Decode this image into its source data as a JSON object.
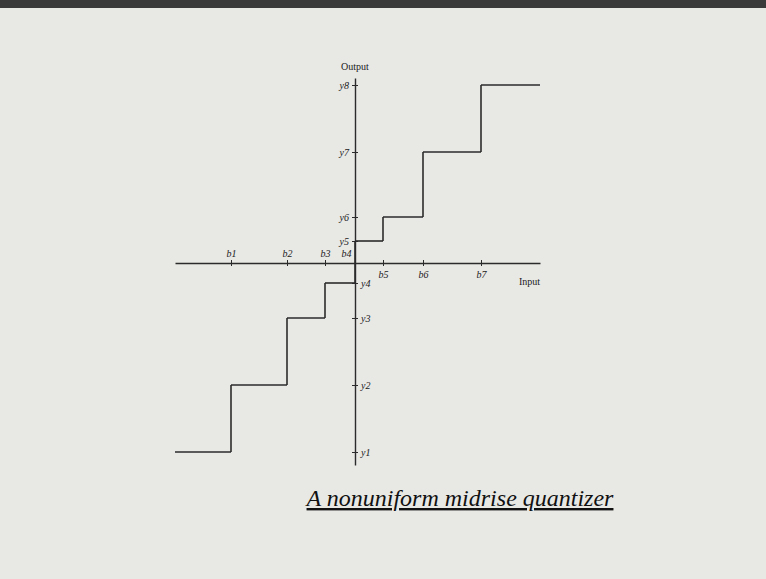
{
  "chart_data": {
    "type": "step",
    "title": "A nonuniform midrise quantizer",
    "x_label": "Input",
    "y_label": "Output",
    "boundaries": [
      -6.2,
      -3.4,
      -1.5,
      0,
      1.4,
      3.4,
      6.3
    ],
    "levels": [
      -9.45,
      -6.1,
      -2.75,
      -1.0,
      1.1,
      2.3,
      5.55,
      8.9
    ],
    "xlim": [
      -9,
      9.25
    ],
    "ylim": [
      -10.1,
      9.25
    ],
    "xticks": [
      {
        "value": -6.2,
        "label": "b1"
      },
      {
        "value": -3.4,
        "label": "b2"
      },
      {
        "value": -1.5,
        "label": "b3"
      },
      {
        "value": 0,
        "label": "b4"
      },
      {
        "value": 1.4,
        "label": "b5"
      },
      {
        "value": 3.4,
        "label": "b6"
      },
      {
        "value": 6.3,
        "label": "b7"
      }
    ],
    "yticks": [
      {
        "value": -9.45,
        "label": "y1"
      },
      {
        "value": -6.1,
        "label": "y2"
      },
      {
        "value": -2.75,
        "label": "y3"
      },
      {
        "value": -1.0,
        "label": "y4"
      },
      {
        "value": 1.1,
        "label": "y5"
      },
      {
        "value": 2.3,
        "label": "y6"
      },
      {
        "value": 5.55,
        "label": "y7"
      },
      {
        "value": 8.9,
        "label": "y8"
      }
    ],
    "color": "#2b2b2b"
  }
}
